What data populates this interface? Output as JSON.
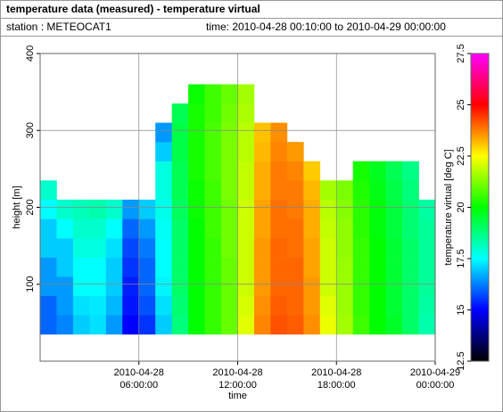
{
  "chart_data": {
    "type": "heatmap",
    "title": "temperature data (measured) - temperature virtual",
    "subtitle": "station : METEOCAT1",
    "time_range": "time: 2010-04-28 00:10:00 to 2010-04-29 00:00:00",
    "x_label": "time",
    "y_label": "height [m]",
    "colorbar_label": "temperature virtual [deg C]",
    "xlim": [
      0,
      24
    ],
    "xticks": [
      {
        "value": 6,
        "label": [
          "2010-04-28",
          "06:00:00"
        ]
      },
      {
        "value": 12,
        "label": [
          "2010-04-28",
          "12:00:00"
        ]
      },
      {
        "value": 18,
        "label": [
          "2010-04-28",
          "18:00:00"
        ]
      },
      {
        "value": 24,
        "label": [
          "2010-04-29",
          "00:00:00"
        ]
      }
    ],
    "ylim": [
      0,
      400
    ],
    "yticks": [
      100,
      200,
      300,
      400
    ],
    "zlim": [
      12.5,
      27.5
    ],
    "zticks": [
      12.5,
      15,
      17.5,
      20,
      22.5,
      25,
      27.5
    ],
    "colorscale": [
      "#000000",
      "#0000ff",
      "#00ffff",
      "#00ff00",
      "#ffff00",
      "#ff0000",
      "#ff00ff"
    ],
    "grid": true,
    "x_bins": [
      0,
      1,
      2,
      3,
      4,
      5,
      6,
      7,
      8,
      9,
      10,
      11,
      12,
      13,
      14,
      15,
      16,
      17,
      18,
      19,
      20,
      21,
      22,
      23,
      24
    ],
    "y_bins": [
      35,
      60,
      85,
      110,
      135,
      160,
      185,
      210,
      235,
      260,
      285,
      310,
      335,
      360
    ],
    "z": [
      [
        16,
        16,
        16.5,
        16.5,
        17,
        17,
        17.5,
        18,
        null,
        null,
        null,
        null,
        null
      ],
      [
        16.3,
        16.5,
        16.5,
        17,
        17,
        17.5,
        18,
        null,
        null,
        null,
        null,
        null,
        null
      ],
      [
        17,
        17.2,
        17.5,
        17.5,
        17.8,
        18,
        18.2,
        null,
        null,
        null,
        null,
        null,
        null
      ],
      [
        17.2,
        17.3,
        17.5,
        17.5,
        17.8,
        18,
        18.3,
        null,
        null,
        null,
        null,
        null,
        null
      ],
      [
        16.5,
        16.8,
        17,
        17,
        17.2,
        17.5,
        18,
        null,
        null,
        null,
        null,
        null,
        null
      ],
      [
        15,
        15.2,
        15.3,
        15.5,
        15.7,
        16,
        16.5,
        null,
        null,
        null,
        null,
        null,
        null
      ],
      [
        15.5,
        15.8,
        16,
        16,
        16.2,
        16.5,
        17,
        null,
        null,
        null,
        null,
        null,
        null
      ],
      [
        17,
        17.2,
        17.4,
        17.5,
        17.5,
        17.6,
        17.7,
        17.8,
        17.8,
        17,
        16.5,
        null,
        null
      ],
      [
        18.8,
        18.9,
        19,
        19,
        19,
        19,
        19.1,
        19.2,
        19.2,
        19.3,
        19.3,
        19.2,
        null
      ],
      [
        20,
        20,
        20,
        20,
        20,
        20,
        20.1,
        20.1,
        20.2,
        20.2,
        20.2,
        20.2,
        20.1
      ],
      [
        20.5,
        20.5,
        20.5,
        20.5,
        20.5,
        20.6,
        20.6,
        20.6,
        20.7,
        20.7,
        20.7,
        20.6,
        20.6
      ],
      [
        21,
        21,
        21,
        21,
        21.1,
        21.1,
        21.1,
        21.2,
        21.2,
        21.2,
        21.2,
        21.1,
        21
      ],
      [
        22.2,
        22.1,
        22,
        22,
        22,
        22,
        22,
        21.9,
        21.9,
        21.8,
        21.8,
        21.7,
        21.6
      ],
      [
        23.7,
        23.6,
        23.5,
        23.5,
        23.5,
        23.4,
        23.4,
        23.3,
        23.3,
        23.2,
        23.1,
        null,
        null
      ],
      [
        24.2,
        24.1,
        24,
        24,
        24,
        23.9,
        23.9,
        23.8,
        23.8,
        23.7,
        23.6,
        null,
        null
      ],
      [
        24.1,
        24,
        24,
        24,
        23.9,
        23.9,
        23.8,
        23.8,
        23.7,
        23.5,
        null,
        null,
        null
      ],
      [
        23.6,
        23.5,
        23.5,
        23.4,
        23.4,
        23.3,
        23.3,
        23.2,
        23,
        null,
        null,
        null,
        null
      ],
      [
        22.3,
        22.2,
        22,
        22,
        22,
        21.9,
        21.8,
        21.6,
        null,
        null,
        null,
        null,
        null
      ],
      [
        21.6,
        21.5,
        21.5,
        21.5,
        21.4,
        21.4,
        21.3,
        21.2,
        null,
        null,
        null,
        null,
        null
      ],
      [
        20.6,
        20.5,
        20.5,
        20.5,
        20.5,
        20.4,
        20.4,
        20.3,
        20.2,
        null,
        null,
        null,
        null
      ],
      [
        20,
        20,
        20,
        20,
        20,
        19.9,
        19.9,
        19.8,
        19.7,
        null,
        null,
        null,
        null
      ],
      [
        19.6,
        19.5,
        19.5,
        19.5,
        19.5,
        19.4,
        19.4,
        19.3,
        19.2,
        null,
        null,
        null,
        null
      ],
      [
        19,
        19,
        19,
        19,
        19,
        18.9,
        18.9,
        18.8,
        18.7,
        null,
        null,
        null,
        null
      ],
      [
        18.3,
        18.4,
        18.5,
        18.5,
        18.5,
        18.5,
        18.4,
        null,
        null,
        null,
        null,
        null,
        null
      ]
    ]
  }
}
